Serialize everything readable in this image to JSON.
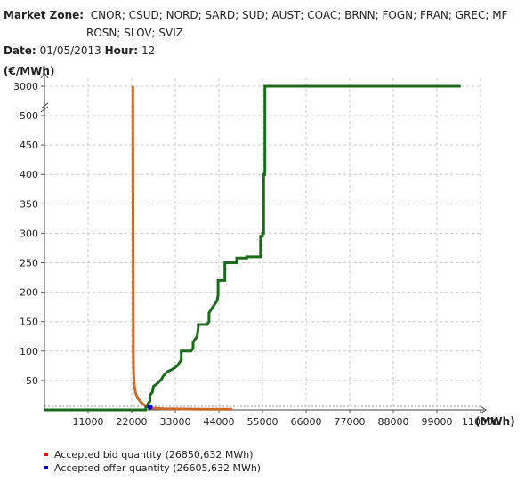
{
  "header": {
    "zone_label": "Market Zone:",
    "zones_line1": "CNOR; CSUD; NORD; SARD; SUD; AUST; COAC; BRNN; FOGN; FRAN; GREC; MF",
    "zones_line2": "ROSN; SLOV; SVIZ",
    "date_label": "Date:",
    "date_value": "01/05/2013",
    "hour_label": "Hour:",
    "hour_value": "12"
  },
  "legend": {
    "bid": {
      "label": "Accepted bid quantity (26850,632 MWh)",
      "color": "#ff0000"
    },
    "offer": {
      "label": "Accepted offer quantity (26605,632 MWh)",
      "color": "#0000cc"
    }
  },
  "chart_data": {
    "type": "line",
    "title": "",
    "xlabel": "(MWh)",
    "ylabel": "(€/MWh)",
    "xlim": [
      0,
      110000
    ],
    "x_ticks": [
      11000,
      22000,
      33000,
      44000,
      55000,
      66000,
      77000,
      88000,
      99000,
      110000
    ],
    "y_ticks": [
      3000,
      500,
      450,
      400,
      350,
      300,
      250,
      200,
      150,
      100,
      50
    ],
    "y_axis_break": "between 500 and 3000",
    "grid": true,
    "series": [
      {
        "color": "#cc6a2c",
        "x": [
          22300,
          22300,
          22400,
          22500,
          22700,
          23000,
          23500,
          24200,
          25000,
          26000,
          27000,
          30000,
          40000,
          47000,
          47000
        ],
        "y": [
          3000,
          500,
          100,
          60,
          40,
          28,
          20,
          14,
          9,
          5,
          3,
          2,
          1,
          1,
          0
        ]
      },
      {
        "color": "#1a6b1a",
        "x": [
          0,
          25500,
          25600,
          26600,
          26600,
          27200,
          27500,
          28500,
          29500,
          30000,
          31000,
          32500,
          33500,
          34500,
          34500,
          37000,
          37500,
          37500,
          38500,
          38800,
          38800,
          41000,
          41500,
          41500,
          42500,
          43000,
          43500,
          43800,
          43800,
          45500,
          45500,
          48500,
          48500,
          51000,
          51000,
          54500,
          54500,
          55000,
          55000,
          55300,
          55300,
          55600,
          55600,
          105000
        ],
        "y": [
          0,
          0,
          5,
          15,
          25,
          30,
          40,
          45,
          52,
          58,
          65,
          70,
          75,
          85,
          100,
          100,
          105,
          115,
          125,
          140,
          145,
          145,
          150,
          165,
          175,
          180,
          185,
          195,
          220,
          220,
          250,
          250,
          258,
          258,
          260,
          260,
          295,
          295,
          300,
          300,
          400,
          400,
          3000,
          3000
        ]
      }
    ],
    "accepted_point": {
      "x": 26600,
      "y": 5
    }
  }
}
